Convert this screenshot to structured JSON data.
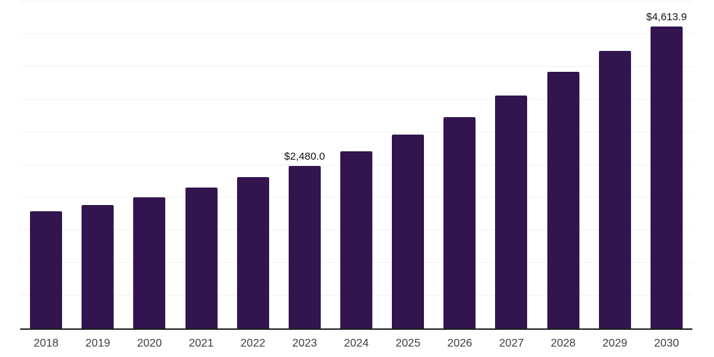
{
  "chart": {
    "background_color": "#ffffff",
    "bar_color": "#32154E",
    "grid_color": "#f2f2f2",
    "axis_color": "#1f1f1f",
    "tick_label_color": "#3d3d3d",
    "data_label_color": "#111111"
  },
  "chart_data": {
    "type": "bar",
    "title": "",
    "xlabel": "",
    "ylabel": "",
    "categories": [
      "2018",
      "2019",
      "2020",
      "2021",
      "2022",
      "2023",
      "2024",
      "2025",
      "2026",
      "2027",
      "2028",
      "2029",
      "2030"
    ],
    "values": [
      1787,
      1883,
      2000,
      2149,
      2309,
      2480.0,
      2713,
      2968,
      3234,
      3564,
      3925,
      4245,
      4613.9
    ],
    "data_labels": [
      "",
      "",
      "",
      "",
      "",
      "$2,480.0",
      "",
      "",
      "",
      "",
      "",
      "",
      "$4,613.9"
    ],
    "ylim": [
      0,
      5000
    ],
    "grid_step": 500,
    "grid": "horizontal",
    "legend": "none",
    "y_axis_tick_labels_visible": false
  }
}
